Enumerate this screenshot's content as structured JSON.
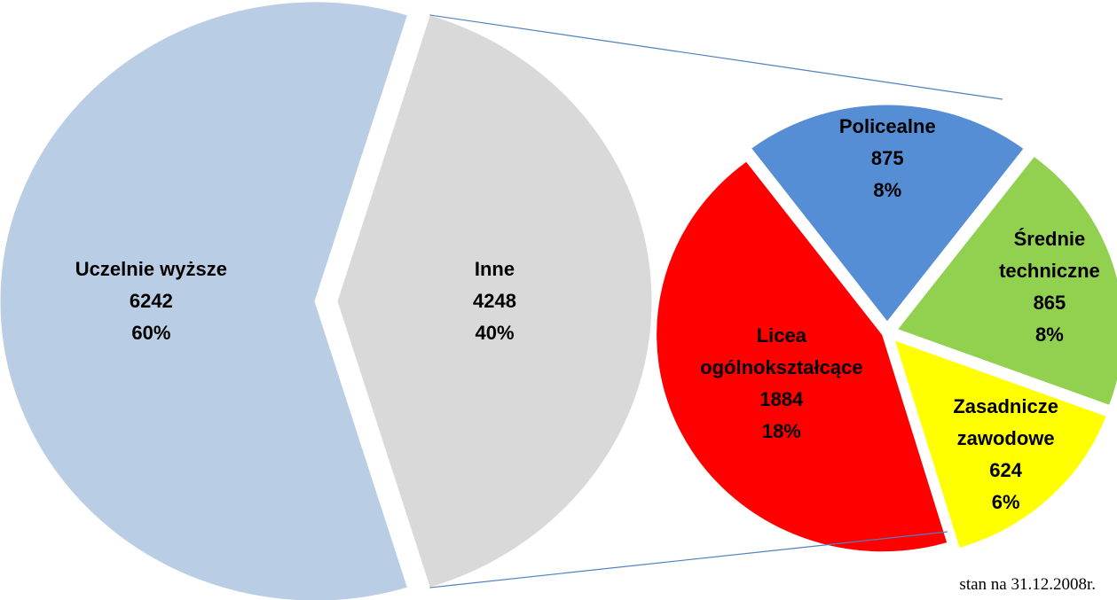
{
  "chart_data": [
    {
      "type": "pie",
      "categories": [
        "Uczelnie wyższe",
        "Inne"
      ],
      "values": [
        6242,
        4248
      ],
      "shares": [
        "60%",
        "40%"
      ],
      "colors": [
        "#b9cde5",
        "#d9d9d9"
      ]
    },
    {
      "type": "pie",
      "categories": [
        "Policealne",
        "Średnie techniczne",
        "Zasadnicze zawodowe",
        "Licea ogólnokształcące"
      ],
      "values": [
        875,
        865,
        624,
        1884
      ],
      "shares": [
        "8%",
        "8%",
        "6%",
        "18%"
      ],
      "colors": [
        "#558ed5",
        "#92d050",
        "#ffff00",
        "#ff0000"
      ]
    }
  ],
  "note": "stan na 31.12.2008r."
}
